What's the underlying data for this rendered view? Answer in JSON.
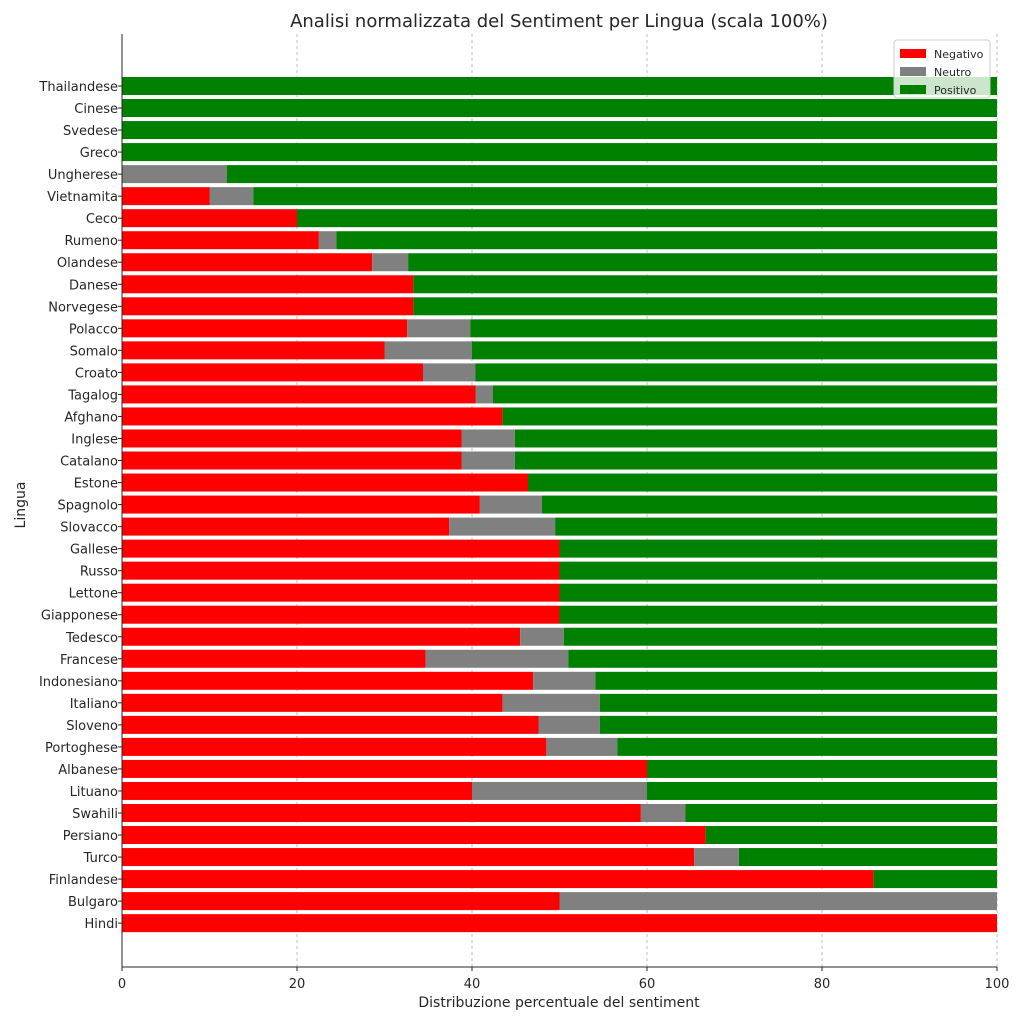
{
  "chart_data": {
    "type": "bar",
    "orientation": "horizontal",
    "stacked": true,
    "title": "Analisi normalizzata del Sentiment per Lingua (scala 100%)",
    "xlabel": "Distribuzione percentuale del sentiment",
    "ylabel": "Lingua",
    "xlim": [
      0,
      100
    ],
    "xticks": [
      "0",
      "20",
      "40",
      "60",
      "80",
      "100"
    ],
    "grid": "vertical dashed",
    "legend_position": "top-right",
    "categories": [
      "Thailandese",
      "Cinese",
      "Svedese",
      "Greco",
      "Ungherese",
      "Vietnamita",
      "Ceco",
      "Rumeno",
      "Olandese",
      "Danese",
      "Norvegese",
      "Polacco",
      "Somalo",
      "Croato",
      "Tagalog",
      "Afghano",
      "Inglese",
      "Catalano",
      "Estone",
      "Spagnolo",
      "Slovacco",
      "Gallese",
      "Russo",
      "Lettone",
      "Giapponese",
      "Tedesco",
      "Francese",
      "Indonesiano",
      "Italiano",
      "Sloveno",
      "Portoghese",
      "Albanese",
      "Lituano",
      "Swahili",
      "Persiano",
      "Turco",
      "Finlandese",
      "Bulgaro",
      "Hindi"
    ],
    "series": [
      {
        "name": "Negativo",
        "color": "#ff0000",
        "values": [
          0,
          0,
          0,
          0,
          0,
          10,
          20,
          22.5,
          28.6,
          33.3,
          33.3,
          32.6,
          30,
          34.4,
          40.4,
          43.5,
          38.8,
          38.8,
          46.4,
          40.9,
          37.4,
          50,
          50,
          50,
          50,
          45.5,
          34.7,
          47,
          43.5,
          47.6,
          48.5,
          60,
          40,
          59.3,
          66.7,
          65.4,
          85.9,
          50,
          100
        ]
      },
      {
        "name": "Neutro",
        "color": "#808080",
        "values": [
          0,
          0,
          0,
          0,
          12,
          5,
          0,
          2,
          4.1,
          0,
          0,
          7.2,
          10,
          6,
          2,
          0,
          6.1,
          6.1,
          0,
          7.1,
          12.1,
          0,
          0,
          0,
          0,
          5,
          16.3,
          7.1,
          11.1,
          7,
          8.1,
          0,
          20,
          5.1,
          0,
          5.1,
          0,
          50,
          0
        ]
      },
      {
        "name": "Positivo",
        "color": "#008000",
        "values": [
          100,
          100,
          100,
          100,
          88,
          85,
          80,
          75.5,
          67.3,
          66.7,
          66.7,
          60.2,
          60,
          59.6,
          57.6,
          56.5,
          55.1,
          55.1,
          53.6,
          52,
          50.5,
          50,
          50,
          50,
          50,
          49.5,
          49,
          45.9,
          45.4,
          45.4,
          43.4,
          40,
          40,
          35.6,
          33.3,
          29.5,
          14.1,
          0,
          0
        ]
      }
    ]
  }
}
